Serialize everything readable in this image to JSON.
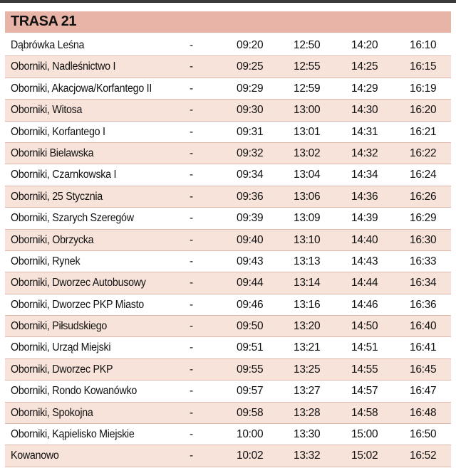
{
  "route": {
    "title": "TRASA 21"
  },
  "rows": [
    {
      "stop": "Dąbrówka Leśna",
      "dash": "-",
      "times": [
        "09:20",
        "12:50",
        "14:20",
        "16:10"
      ]
    },
    {
      "stop": "Oborniki, Nadleśnictwo I",
      "dash": "-",
      "times": [
        "09:25",
        "12:55",
        "14:25",
        "16:15"
      ]
    },
    {
      "stop": "Oborniki, Akacjowa/Korfantego II",
      "dash": "-",
      "times": [
        "09:29",
        "12:59",
        "14:29",
        "16:19"
      ]
    },
    {
      "stop": "Oborniki, Witosa",
      "dash": "-",
      "times": [
        "09:30",
        "13:00",
        "14:30",
        "16:20"
      ]
    },
    {
      "stop": "Oborniki, Korfantego I",
      "dash": "-",
      "times": [
        "09:31",
        "13:01",
        "14:31",
        "16:21"
      ]
    },
    {
      "stop": "Oborniki Bielawska",
      "dash": "-",
      "times": [
        "09:32",
        "13:02",
        "14:32",
        "16:22"
      ]
    },
    {
      "stop": "Oborniki, Czarnkowska I",
      "dash": "-",
      "times": [
        "09:34",
        "13:04",
        "14:34",
        "16:24"
      ]
    },
    {
      "stop": "Oborniki, 25 Stycznia",
      "dash": "-",
      "times": [
        "09:36",
        "13:06",
        "14:36",
        "16:26"
      ]
    },
    {
      "stop": "Oborniki, Szarych Szeregów",
      "dash": "-",
      "times": [
        "09:39",
        "13:09",
        "14:39",
        "16:29"
      ]
    },
    {
      "stop": "Oborniki, Obrzycka",
      "dash": "-",
      "times": [
        "09:40",
        "13:10",
        "14:40",
        "16:30"
      ]
    },
    {
      "stop": "Oborniki, Rynek",
      "dash": "-",
      "times": [
        "09:43",
        "13:13",
        "14:43",
        "16:33"
      ]
    },
    {
      "stop": "Oborniki, Dworzec Autobusowy",
      "dash": "-",
      "times": [
        "09:44",
        "13:14",
        "14:44",
        "16:34"
      ]
    },
    {
      "stop": "Oborniki, Dworzec PKP Miasto",
      "dash": "-",
      "times": [
        "09:46",
        "13:16",
        "14:46",
        "16:36"
      ]
    },
    {
      "stop": "Oborniki, Piłsudskiego",
      "dash": "-",
      "times": [
        "09:50",
        "13:20",
        "14:50",
        "16:40"
      ]
    },
    {
      "stop": "Oborniki, Urząd Miejski",
      "dash": "-",
      "times": [
        "09:51",
        "13:21",
        "14:51",
        "16:41"
      ]
    },
    {
      "stop": "Oborniki, Dworzec PKP",
      "dash": "-",
      "times": [
        "09:55",
        "13:25",
        "14:55",
        "16:45"
      ]
    },
    {
      "stop": "Oborniki, Rondo Kowanówko",
      "dash": "-",
      "times": [
        "09:57",
        "13:27",
        "14:57",
        "16:47"
      ]
    },
    {
      "stop": "Oborniki, Spokojna",
      "dash": "-",
      "times": [
        "09:58",
        "13:28",
        "14:58",
        "16:48"
      ]
    },
    {
      "stop": "Oborniki, Kąpielisko Miejskie",
      "dash": "-",
      "times": [
        "10:00",
        "13:30",
        "15:00",
        "16:50"
      ]
    },
    {
      "stop": "Kowanowo",
      "dash": "-",
      "times": [
        "10:02",
        "13:32",
        "15:02",
        "16:52"
      ]
    }
  ],
  "colors": {
    "header": "#e7b4a7",
    "stripe": "#f7e3da",
    "rule": "#e0b7ab",
    "topbar": "#3a3a3a"
  }
}
